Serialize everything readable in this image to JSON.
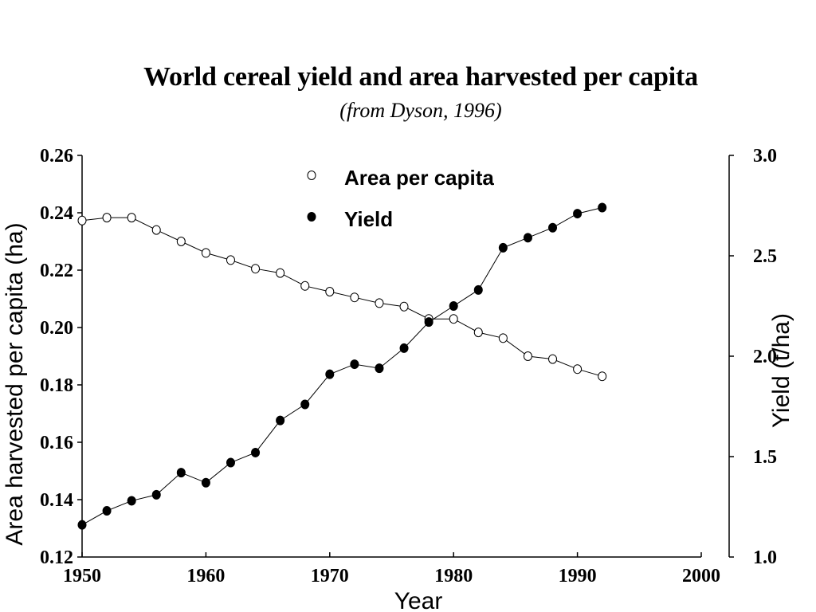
{
  "title": "World cereal yield and area harvested per capita",
  "subtitle": "(from Dyson, 1996)",
  "chart_data": {
    "type": "line",
    "xlabel": "Year",
    "ylabel_left": "Area harvested per capita (ha)",
    "ylabel_right": "Yield (t/ha)",
    "xlim": [
      1950,
      2000
    ],
    "ylim_left": [
      0.12,
      0.26
    ],
    "ylim_right": [
      1.0,
      3.0
    ],
    "x_ticks": [
      "1950",
      "1960",
      "1970",
      "1980",
      "1990",
      "2000"
    ],
    "y_left_ticks": [
      "0.12",
      "0.14",
      "0.16",
      "0.18",
      "0.20",
      "0.22",
      "0.24",
      "0.26"
    ],
    "y_right_ticks": [
      "1.0",
      "1.5",
      "2.0",
      "2.5",
      "3.0"
    ],
    "legend_position": "top-center",
    "grid": false,
    "series": [
      {
        "name": "Area per capita",
        "axis": "left",
        "marker": "open-circle",
        "color": "#000000",
        "x": [
          1950,
          1952,
          1954,
          1956,
          1958,
          1960,
          1962,
          1964,
          1966,
          1968,
          1970,
          1972,
          1974,
          1976,
          1978,
          1980,
          1982,
          1984,
          1986,
          1988,
          1990,
          1992
        ],
        "y": [
          0.2373,
          0.2383,
          0.2383,
          0.234,
          0.23,
          0.226,
          0.2235,
          0.2205,
          0.219,
          0.2145,
          0.2125,
          0.2105,
          0.2085,
          0.2073,
          0.203,
          0.203,
          0.1983,
          0.1963,
          0.19,
          0.189,
          0.1855,
          0.183
        ]
      },
      {
        "name": "Yield",
        "axis": "right",
        "marker": "filled-circle",
        "color": "#000000",
        "x": [
          1950,
          1952,
          1954,
          1956,
          1958,
          1960,
          1962,
          1964,
          1966,
          1968,
          1970,
          1972,
          1974,
          1976,
          1978,
          1980,
          1982,
          1984,
          1986,
          1988,
          1990,
          1992
        ],
        "y": [
          1.16,
          1.23,
          1.28,
          1.31,
          1.42,
          1.37,
          1.47,
          1.52,
          1.68,
          1.76,
          1.91,
          1.96,
          1.94,
          2.04,
          2.17,
          2.25,
          2.33,
          2.54,
          2.59,
          2.64,
          2.71,
          2.74
        ]
      }
    ]
  }
}
